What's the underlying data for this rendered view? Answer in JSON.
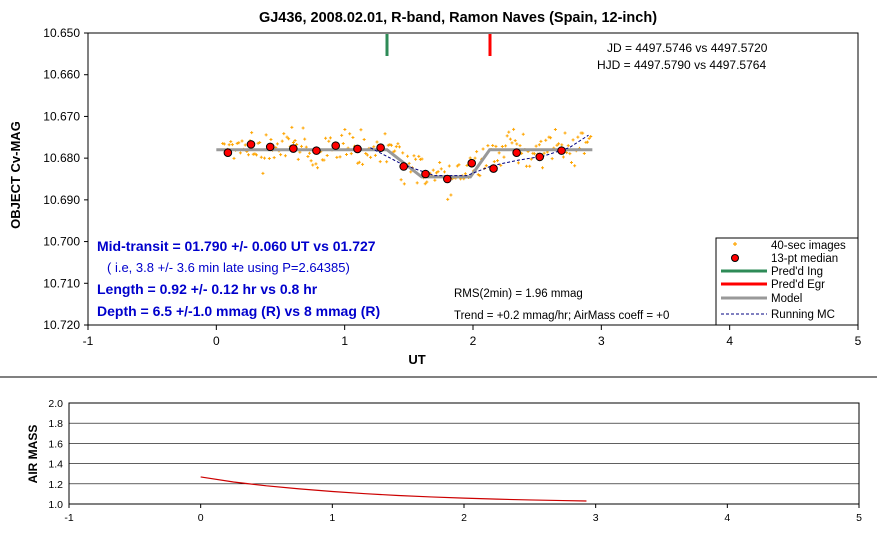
{
  "chart_data": [
    {
      "type": "scatter",
      "title": "GJ436, 2008.02.01, R-band, Ramon Naves (Spain, 12-inch)",
      "xlabel": "UT",
      "ylabel": "OBJECT Cv-MAG",
      "xlim": [
        -1,
        5
      ],
      "ylim": [
        10.72,
        10.65
      ],
      "x_ticks": [
        "-1",
        "0",
        "1",
        "2",
        "3",
        "4",
        "5"
      ],
      "y_ticks": [
        "10.650",
        "10.660",
        "10.670",
        "10.680",
        "10.690",
        "10.700",
        "10.710",
        "10.720"
      ],
      "y_inverted": true,
      "grid": false,
      "legend_position": "bottom-right",
      "legend": [
        "40-sec images",
        "13-pt median",
        "Pred'd Ing",
        "Pred'd Egr",
        "Model",
        "Running MC"
      ],
      "colors": {
        "images": "#ffa500",
        "median": "#ff0000",
        "ingress": "#2e8b57",
        "egress": "#ff0000",
        "model": "#999999",
        "running_mc": "#000080",
        "text_blue": "#0000cc"
      },
      "predicted_ingress_ut": 1.33,
      "predicted_egress_ut": 2.13,
      "annotations": {
        "jd": "JD = 4497.5746 vs 4497.5720",
        "hjd": "HJD = 4497.5790 vs 4497.5764",
        "mid_transit": "Mid-transit = 01.790 +/- 0.060 UT  vs 01.727",
        "late_note": "( i.e, 3.8 +/- 3.6 min late using P=2.64385)",
        "length": "Length = 0.92 +/- 0.12 hr  vs 0.8 hr",
        "depth": "Depth = 6.5 +/-1.0 mmag (R) vs 8  mmag (R)",
        "rms": "RMS(2min) = 1.96 mmag",
        "trend": "Trend = +0.2 mmag/hr; AirMass coeff = +0"
      },
      "series": [
        {
          "name": "13-pt median",
          "x": [
            0.09,
            0.27,
            0.42,
            0.6,
            0.78,
            0.93,
            1.1,
            1.28,
            1.46,
            1.63,
            1.8,
            1.99,
            2.16,
            2.34,
            2.52,
            2.69
          ],
          "y": [
            10.6787,
            10.6767,
            10.6773,
            10.6777,
            10.6782,
            10.677,
            10.6778,
            10.6775,
            10.682,
            10.6838,
            10.685,
            10.6812,
            10.6825,
            10.6787,
            10.6797,
            10.6782
          ]
        },
        {
          "name": "Model",
          "x": [
            0.0,
            1.33,
            1.6,
            1.98,
            2.13,
            2.93
          ],
          "y": [
            10.678,
            10.678,
            10.6845,
            10.6845,
            10.678,
            10.678
          ]
        },
        {
          "name": "Running MC",
          "x": [
            1.2,
            1.45,
            1.7,
            1.95,
            2.15,
            2.35,
            2.55,
            2.75,
            2.9
          ],
          "y": [
            10.6775,
            10.6815,
            10.6842,
            10.6842,
            10.6818,
            10.6805,
            10.6795,
            10.6775,
            10.6745
          ]
        }
      ]
    },
    {
      "type": "line",
      "xlabel": "",
      "ylabel": "AIR MASS",
      "xlim": [
        -1,
        5
      ],
      "ylim": [
        1.0,
        2.0
      ],
      "x_ticks": [
        "-1",
        "0",
        "1",
        "2",
        "3",
        "4",
        "5"
      ],
      "y_ticks": [
        "1.0",
        "1.2",
        "1.4",
        "1.6",
        "1.8",
        "2.0"
      ],
      "color": "#cc0000",
      "x": [
        0.0,
        0.25,
        0.5,
        0.75,
        1.0,
        1.25,
        1.5,
        1.75,
        2.0,
        2.25,
        2.5,
        2.75,
        2.93
      ],
      "y": [
        1.268,
        1.218,
        1.18,
        1.15,
        1.124,
        1.102,
        1.084,
        1.07,
        1.058,
        1.048,
        1.04,
        1.034,
        1.03
      ]
    }
  ]
}
